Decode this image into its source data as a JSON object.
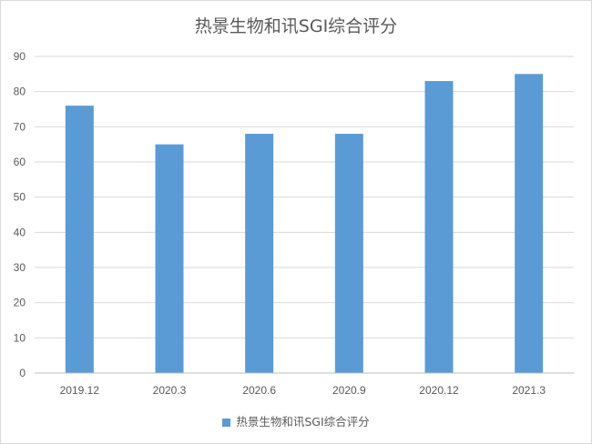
{
  "chart_data": {
    "type": "bar",
    "title": "热景生物和讯SGI综合评分",
    "categories": [
      "2019.12",
      "2020.3",
      "2020.6",
      "2020.9",
      "2020.12",
      "2021.3"
    ],
    "series": [
      {
        "name": "热景生物和讯SGI综合评分",
        "values": [
          76,
          65,
          68,
          68,
          83,
          85
        ],
        "color": "#5b9bd5"
      }
    ],
    "ylim": [
      0,
      90
    ],
    "yticks": [
      0,
      10,
      20,
      30,
      40,
      50,
      60,
      70,
      80,
      90
    ],
    "grid": true,
    "legend_position": "bottom"
  }
}
